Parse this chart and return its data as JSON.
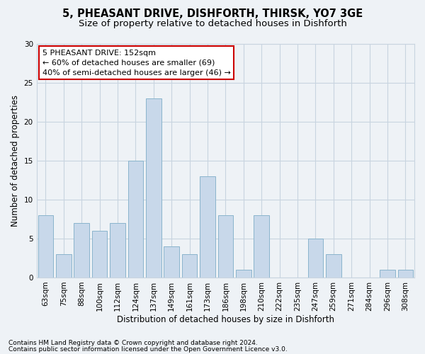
{
  "title1": "5, PHEASANT DRIVE, DISHFORTH, THIRSK, YO7 3GE",
  "title2": "Size of property relative to detached houses in Dishforth",
  "xlabel": "Distribution of detached houses by size in Dishforth",
  "ylabel": "Number of detached properties",
  "categories": [
    "63sqm",
    "75sqm",
    "88sqm",
    "100sqm",
    "112sqm",
    "124sqm",
    "137sqm",
    "149sqm",
    "161sqm",
    "173sqm",
    "186sqm",
    "198sqm",
    "210sqm",
    "222sqm",
    "235sqm",
    "247sqm",
    "259sqm",
    "271sqm",
    "284sqm",
    "296sqm",
    "308sqm"
  ],
  "values": [
    8,
    3,
    7,
    6,
    7,
    15,
    23,
    4,
    3,
    13,
    8,
    1,
    8,
    0,
    0,
    5,
    3,
    0,
    0,
    1,
    1
  ],
  "bar_color": "#c8d8ea",
  "bar_edge_color": "#8ab4cc",
  "annotation_line1": "5 PHEASANT DRIVE: 152sqm",
  "annotation_line2": "← 60% of detached houses are smaller (69)",
  "annotation_line3": "40% of semi-detached houses are larger (46) →",
  "annotation_box_facecolor": "#ffffff",
  "annotation_box_edgecolor": "#cc0000",
  "ylim": [
    0,
    30
  ],
  "yticks": [
    0,
    5,
    10,
    15,
    20,
    25,
    30
  ],
  "grid_color": "#c8d4e0",
  "background_color": "#eef2f6",
  "footer1": "Contains HM Land Registry data © Crown copyright and database right 2024.",
  "footer2": "Contains public sector information licensed under the Open Government Licence v3.0.",
  "title1_fontsize": 10.5,
  "title2_fontsize": 9.5,
  "xlabel_fontsize": 8.5,
  "ylabel_fontsize": 8.5,
  "tick_fontsize": 7.5,
  "annotation_fontsize": 8,
  "footer_fontsize": 6.5
}
